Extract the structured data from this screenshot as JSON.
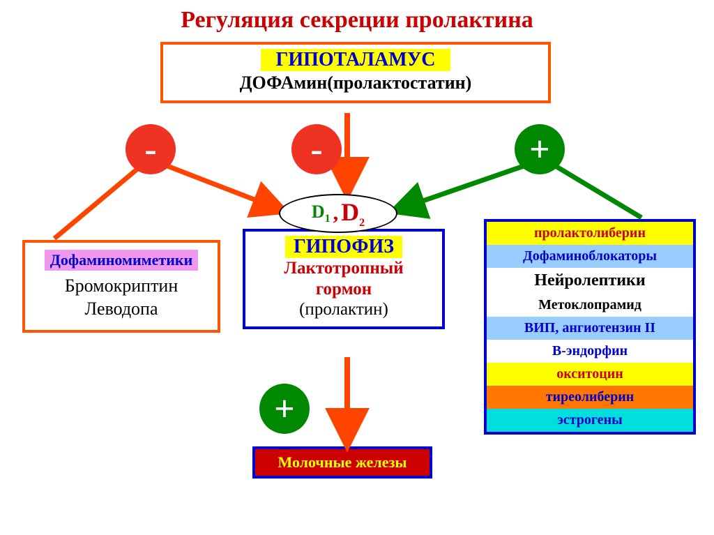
{
  "title": "Регуляция секреции пролактина",
  "hypothalamus": {
    "label": "ГИПОТАЛАМУС",
    "sub": "ДОФАмин(пролактостатин)"
  },
  "signs": {
    "minus": "-",
    "plus": "+"
  },
  "receptors": {
    "d1": "D",
    "d1_sub": "1",
    "comma": ",",
    "d2": "D",
    "d2_sub": "2"
  },
  "left": {
    "title": "Дофаминомиметики",
    "line1": "Бромокриптин",
    "line2": "Леводопа"
  },
  "center": {
    "title": "ГИПОФИЗ",
    "line1": "Лактотропный",
    "line2": "гормон",
    "line3": "(пролактин)"
  },
  "milk": "Молочные железы",
  "right": {
    "items": [
      {
        "text": "пролактолиберин",
        "bg": "#ffff00",
        "color": "#cc0000"
      },
      {
        "text": "Дофаминоблокаторы",
        "bg": "#99ccff",
        "color": "#0000cc"
      },
      {
        "text": "Нейролептики",
        "bg": "#ffffff",
        "color": "#000000",
        "size": 24
      },
      {
        "text": "Метоклопрамид",
        "bg": "#ffffff",
        "color": "#000000"
      },
      {
        "text": "ВИП, ангиотензин II",
        "bg": "#99ccff",
        "color": "#0000cc"
      },
      {
        "text": "В-эндорфин",
        "bg": "#ffffff",
        "color": "#0000cc"
      },
      {
        "text": "окситоцин",
        "bg": "#ffff00",
        "color": "#cc0000"
      },
      {
        "text": "тиреолиберин",
        "bg": "#ff7700",
        "color": "#0000cc"
      },
      {
        "text": "эстрогены",
        "bg": "#00dddd",
        "color": "#0000cc"
      }
    ]
  },
  "arrows": {
    "red_stroke": "#ff4400",
    "green_stroke": "#008800",
    "stroke_width": 6
  }
}
